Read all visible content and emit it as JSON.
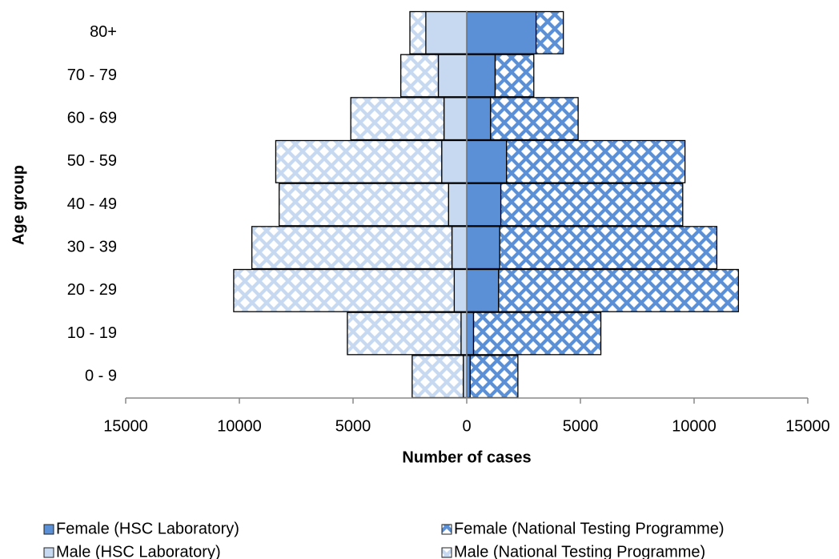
{
  "chart_data": {
    "type": "pyramid",
    "x_label": "Number of cases",
    "y_label": "Age group",
    "categories": [
      "0 - 9",
      "10 - 19",
      "20 - 29",
      "30 - 39",
      "40 - 49",
      "50 - 59",
      "60 - 69",
      "70 - 79",
      "80+"
    ],
    "series": [
      {
        "name": "Female (HSC Laboratory)",
        "color": "#5b8fd6",
        "pattern": "solid",
        "values": [
          150,
          300,
          1400,
          1450,
          1500,
          1750,
          1050,
          1250,
          3050
        ]
      },
      {
        "name": "Female (National Testing Programme)",
        "color": "#5b8fd6",
        "pattern": "diamond",
        "values": [
          2100,
          5600,
          10550,
          9550,
          8000,
          7850,
          3850,
          1700,
          1200
        ]
      },
      {
        "name": "Male (HSC Laboratory)",
        "color": "#c6d9f1",
        "pattern": "solid",
        "values": [
          -150,
          -250,
          -550,
          -650,
          -800,
          -1100,
          -1000,
          -1250,
          -1800
        ]
      },
      {
        "name": "Male (National Testing Programme)",
        "color": "#c6d9f1",
        "pattern": "diamond",
        "values": [
          -2250,
          -5000,
          -9700,
          -8800,
          -7450,
          -7300,
          -4100,
          -1650,
          -700
        ]
      }
    ],
    "stacks": [
      [
        0,
        1
      ],
      [
        2,
        3
      ]
    ],
    "xlim": [
      -15000,
      15000
    ],
    "xticks": [
      {
        "value": -15000,
        "label": "15000"
      },
      {
        "value": -10000,
        "label": "10000"
      },
      {
        "value": -5000,
        "label": "5000"
      },
      0,
      5000,
      10000,
      15000
    ]
  }
}
